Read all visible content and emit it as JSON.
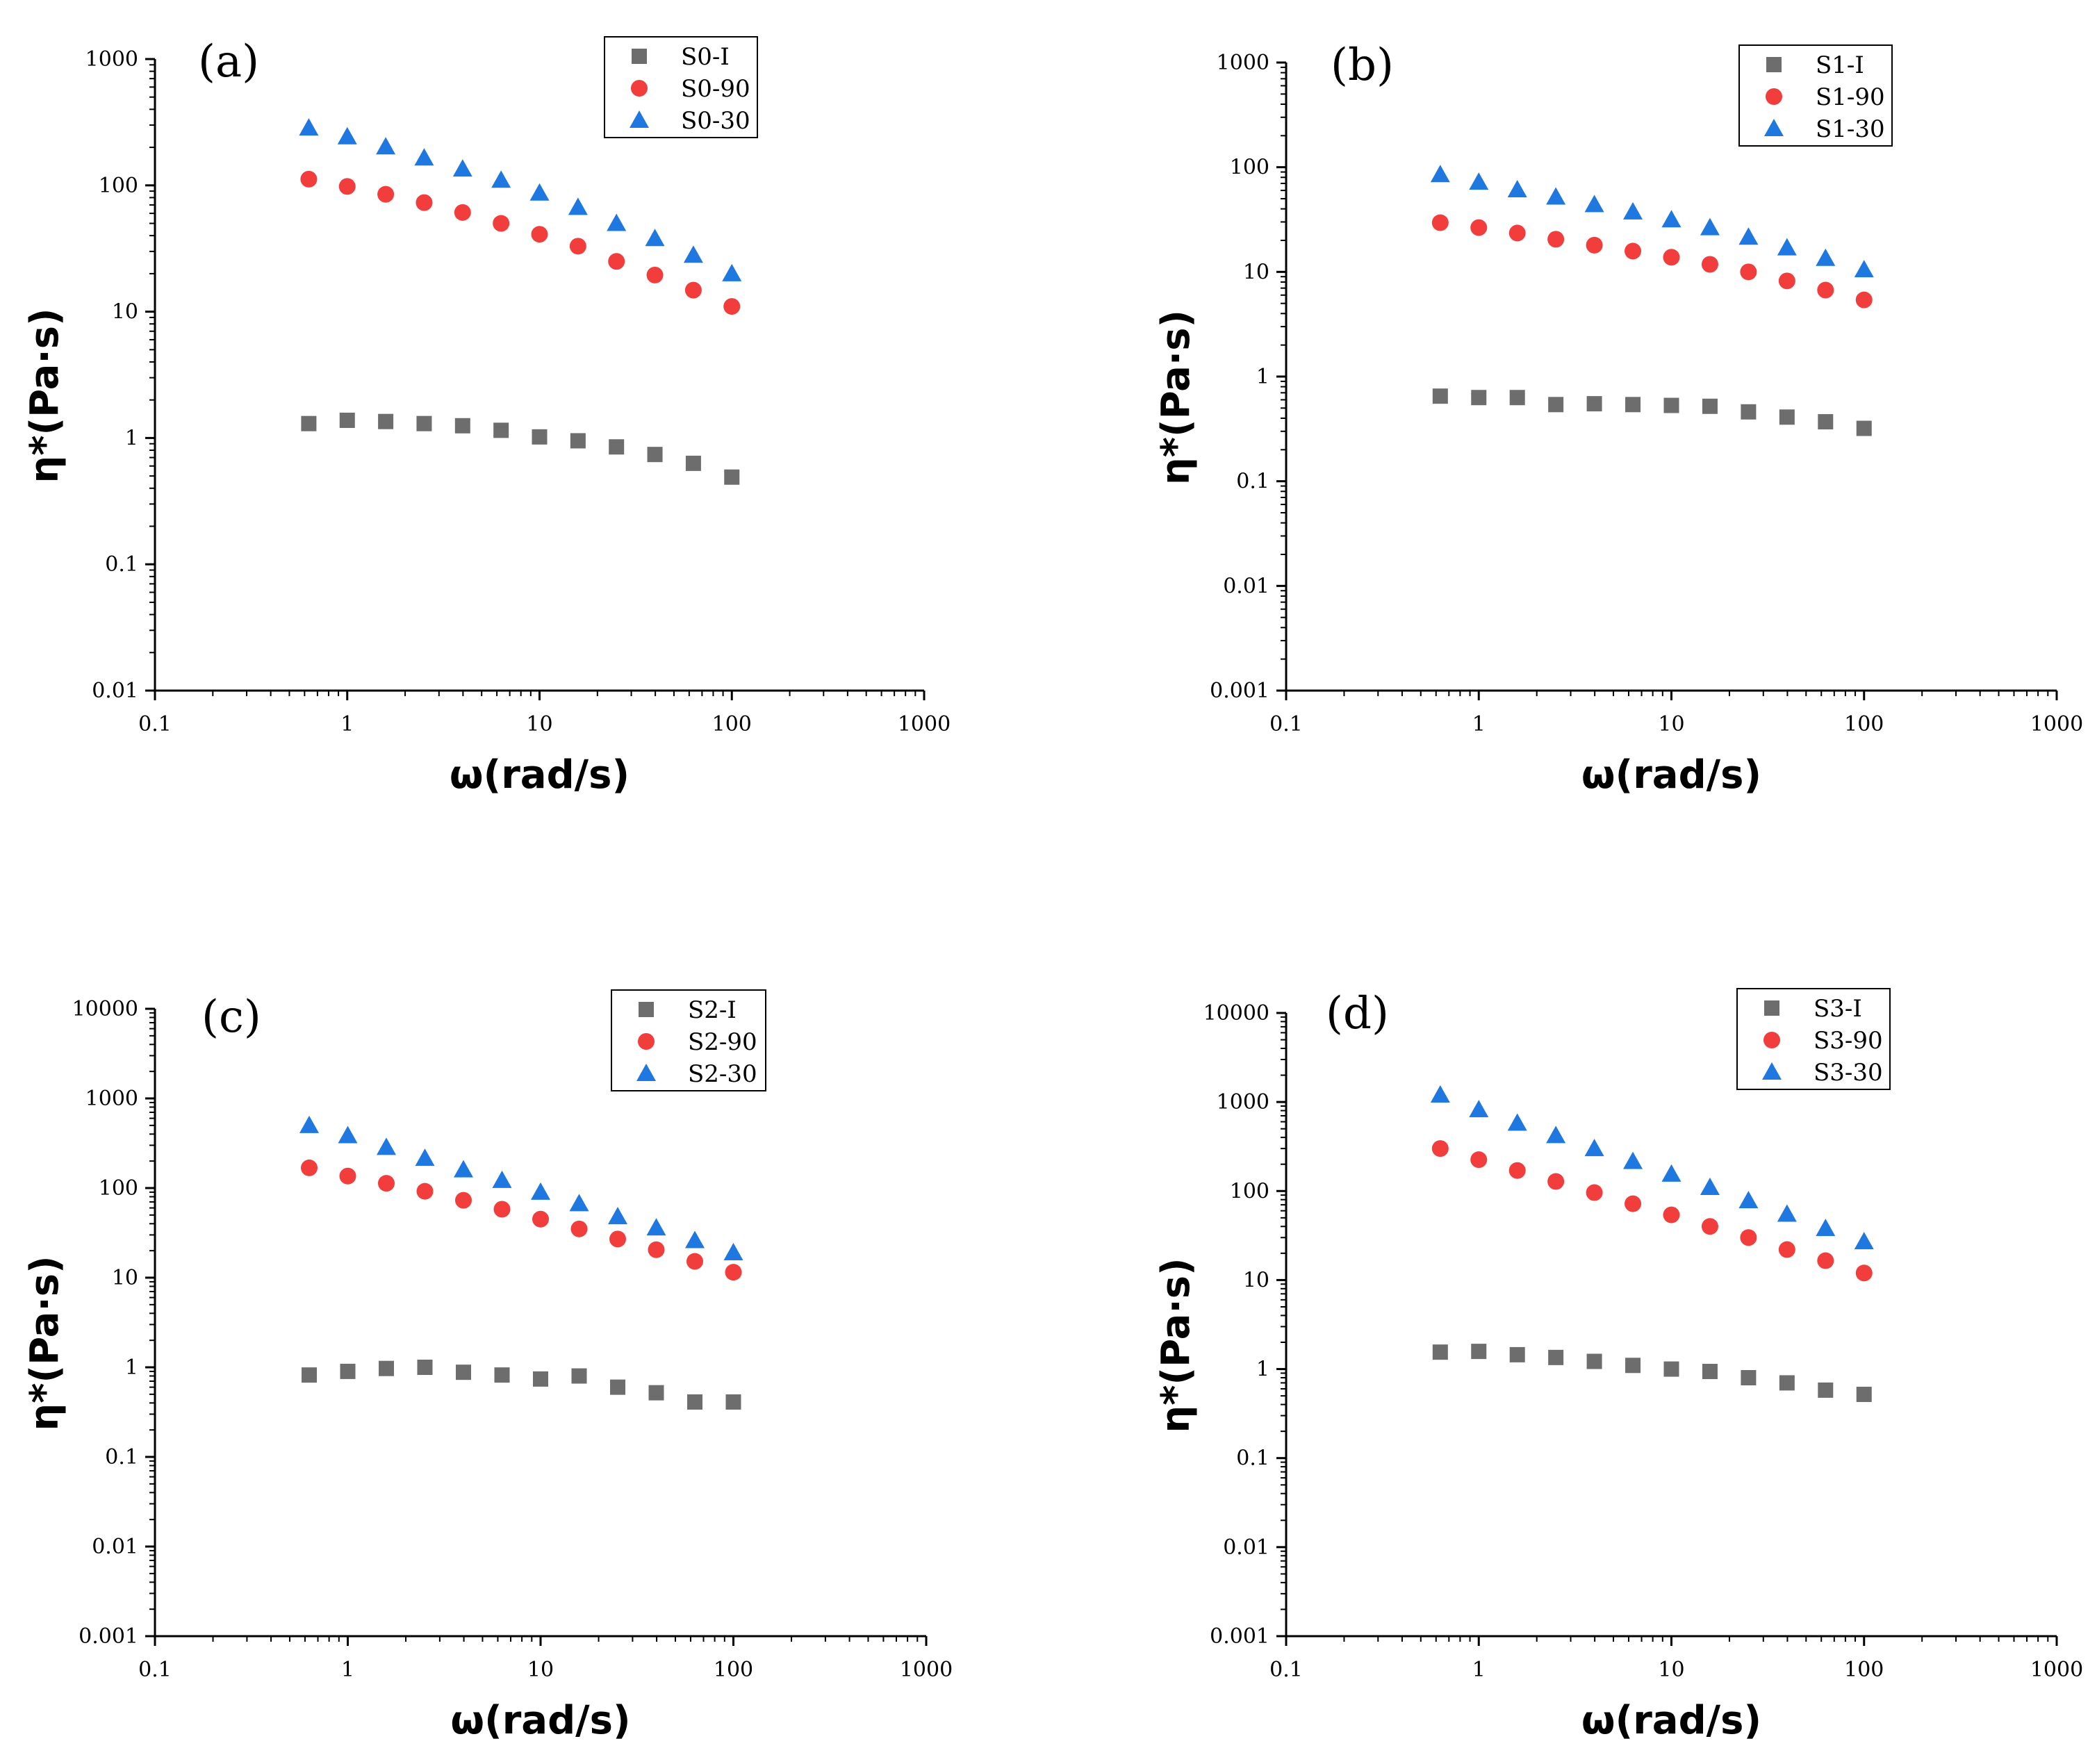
{
  "colors": {
    "S_I": "#6d6d6d",
    "S_90": "#f23d3d",
    "S_30": "#1f77e0",
    "axis": "#000000"
  },
  "chart_data": [
    {
      "type": "scatter",
      "panel_label": "(a)",
      "xlabel": "ω(rad/s)",
      "ylabel": "η*(Pa·s)",
      "xscale": "log",
      "yscale": "log",
      "xlim": [
        0.1,
        1000
      ],
      "ylim": [
        0.01,
        1000
      ],
      "x_ticks": [
        "0.1",
        "1",
        "10",
        "100",
        "1000"
      ],
      "y_ticks": [
        "0.01",
        "0.1",
        "1",
        "10",
        "100",
        "1000"
      ],
      "legend_position": "top-right",
      "x": [
        0.631,
        1.0,
        1.585,
        2.512,
        3.981,
        6.31,
        10.0,
        15.85,
        25.12,
        39.81,
        63.1,
        100.0
      ],
      "series": [
        {
          "name": "S0-I",
          "marker": "square",
          "color": "#6d6d6d",
          "values": [
            1.3,
            1.38,
            1.35,
            1.3,
            1.25,
            1.15,
            1.02,
            0.95,
            0.85,
            0.74,
            0.63,
            0.49
          ]
        },
        {
          "name": "S0-90",
          "marker": "circle",
          "color": "#f23d3d",
          "values": [
            112,
            98,
            85,
            73,
            61,
            50,
            41,
            33,
            25,
            19.5,
            14.8,
            11
          ]
        },
        {
          "name": "S0-30",
          "marker": "triangle",
          "color": "#1f77e0",
          "values": [
            285,
            243,
            202,
            165,
            135,
            110,
            87,
            67,
            50,
            38,
            28,
            20
          ]
        }
      ]
    },
    {
      "type": "scatter",
      "panel_label": "(b)",
      "xlabel": "ω(rad/s)",
      "ylabel": "η*(Pa·s)",
      "xscale": "log",
      "yscale": "log",
      "xlim": [
        0.1,
        1000
      ],
      "ylim": [
        0.001,
        1000
      ],
      "x_ticks": [
        "0.1",
        "1",
        "10",
        "100",
        "1000"
      ],
      "y_ticks": [
        "0.001",
        "0.01",
        "0.1",
        "1",
        "10",
        "100",
        "1000"
      ],
      "legend_position": "top-right",
      "x": [
        0.631,
        1.0,
        1.585,
        2.512,
        3.981,
        6.31,
        10.0,
        15.85,
        25.12,
        39.81,
        63.1,
        100.0
      ],
      "series": [
        {
          "name": "S1-I",
          "marker": "square",
          "color": "#6d6d6d",
          "values": [
            0.65,
            0.63,
            0.63,
            0.54,
            0.55,
            0.54,
            0.53,
            0.52,
            0.46,
            0.41,
            0.37,
            0.32
          ]
        },
        {
          "name": "S1-90",
          "marker": "circle",
          "color": "#f23d3d",
          "values": [
            29.5,
            26.5,
            23.5,
            20.5,
            18,
            15.8,
            13.8,
            11.8,
            10,
            8.2,
            6.7,
            5.4
          ]
        },
        {
          "name": "S1-30",
          "marker": "triangle",
          "color": "#1f77e0",
          "values": [
            85,
            72,
            61,
            52,
            44,
            37.5,
            31.5,
            26.5,
            21.5,
            17,
            13.5,
            10.5
          ]
        }
      ]
    },
    {
      "type": "scatter",
      "panel_label": "(c)",
      "xlabel": "ω(rad/s)",
      "ylabel": "η*(Pa·s)",
      "xscale": "log",
      "yscale": "log",
      "xlim": [
        0.1,
        1000
      ],
      "ylim": [
        0.001,
        10000
      ],
      "x_ticks": [
        "0.1",
        "1",
        "10",
        "100",
        "1000"
      ],
      "y_ticks": [
        "0.001",
        "0.01",
        "0.1",
        "1",
        "10",
        "100",
        "1000",
        "10000"
      ],
      "legend_position": "top-right",
      "x": [
        0.631,
        1.0,
        1.585,
        2.512,
        3.981,
        6.31,
        10.0,
        15.85,
        25.12,
        39.81,
        63.1,
        100.0
      ],
      "series": [
        {
          "name": "S2-I",
          "marker": "square",
          "color": "#6d6d6d",
          "values": [
            0.82,
            0.9,
            0.97,
            1.0,
            0.88,
            0.82,
            0.74,
            0.8,
            0.6,
            0.52,
            0.41,
            0.41
          ]
        },
        {
          "name": "S2-90",
          "marker": "circle",
          "color": "#f23d3d",
          "values": [
            168,
            136,
            113,
            92,
            73,
            58,
            45,
            35,
            27,
            20.5,
            15.2,
            11.5
          ]
        },
        {
          "name": "S2-30",
          "marker": "triangle",
          "color": "#1f77e0",
          "values": [
            500,
            385,
            285,
            215,
            160,
            122,
            90,
            67,
            48,
            36,
            26,
            19
          ]
        }
      ]
    },
    {
      "type": "scatter",
      "panel_label": "(d)",
      "xlabel": "ω(rad/s)",
      "ylabel": "η*(Pa·s)",
      "xscale": "log",
      "yscale": "log",
      "xlim": [
        0.1,
        1000
      ],
      "ylim": [
        0.001,
        10000
      ],
      "x_ticks": [
        "0.1",
        "1",
        "10",
        "100",
        "1000"
      ],
      "y_ticks": [
        "0.001",
        "0.01",
        "0.1",
        "1",
        "10",
        "100",
        "1000",
        "10000"
      ],
      "legend_position": "top-right",
      "x": [
        0.631,
        1.0,
        1.585,
        2.512,
        3.981,
        6.31,
        10.0,
        15.85,
        25.12,
        39.81,
        63.1,
        100.0
      ],
      "series": [
        {
          "name": "S3-I",
          "marker": "square",
          "color": "#6d6d6d",
          "values": [
            1.55,
            1.58,
            1.45,
            1.35,
            1.22,
            1.1,
            1.0,
            0.94,
            0.8,
            0.7,
            0.58,
            0.52
          ]
        },
        {
          "name": "S3-90",
          "marker": "circle",
          "color": "#f23d3d",
          "values": [
            300,
            225,
            170,
            128,
            96,
            72,
            54,
            40,
            30,
            22,
            16.5,
            12
          ]
        },
        {
          "name": "S3-30",
          "marker": "triangle",
          "color": "#1f77e0",
          "values": [
            1200,
            820,
            580,
            420,
            300,
            215,
            155,
            110,
            78,
            55,
            38,
            27
          ]
        }
      ]
    }
  ]
}
